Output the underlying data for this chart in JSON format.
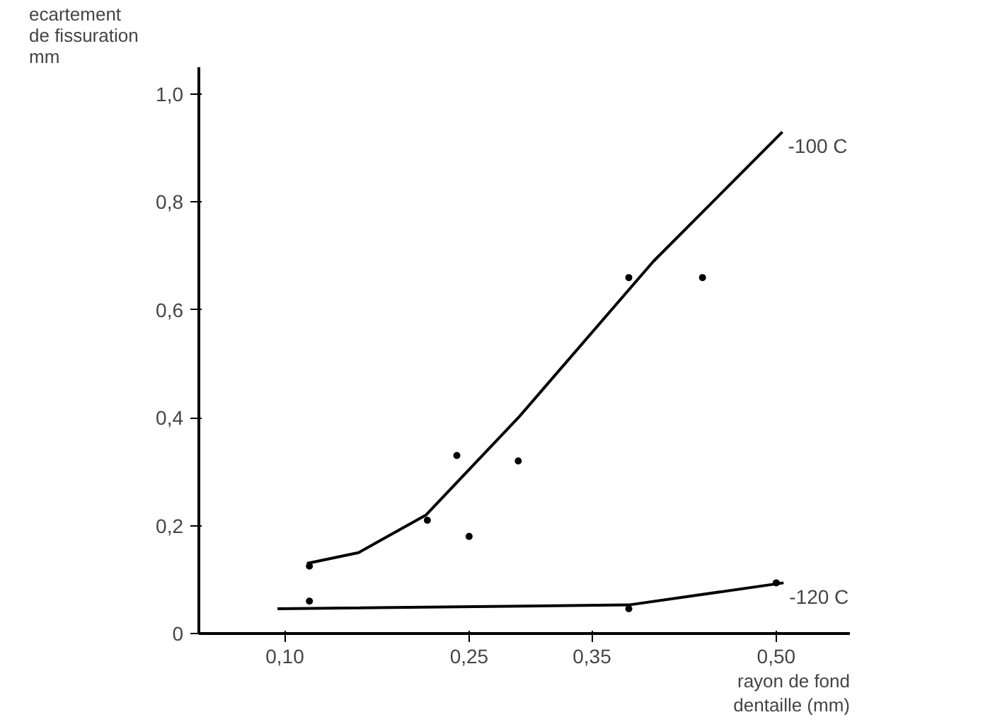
{
  "chart_data": {
    "type": "line",
    "xlabel": "rayon de fond\ndentaille (mm)",
    "ylabel": "ecartement\nde fissuration\nmm",
    "xlim": [
      0.03,
      0.56
    ],
    "ylim": [
      0,
      1.05
    ],
    "xticks": [
      {
        "value": 0.1,
        "label": "0,10"
      },
      {
        "value": 0.25,
        "label": "0,25"
      },
      {
        "value": 0.35,
        "label": "0,35"
      },
      {
        "value": 0.5,
        "label": "0,50"
      }
    ],
    "yticks": [
      0,
      {
        "value": 0.2,
        "label": "0,2"
      },
      {
        "value": 0.4,
        "label": "0,4"
      },
      {
        "value": 0.6,
        "label": "0,6"
      },
      {
        "value": 0.8,
        "label": "0,8"
      },
      {
        "value": 1.0,
        "label": "1,0"
      }
    ],
    "grid": false,
    "marker": "none",
    "line_style": "solid",
    "series": [
      {
        "name": "-100 C",
        "color": "#000000",
        "x": [
          0.118,
          0.16,
          0.215,
          0.29,
          0.4,
          0.505
        ],
        "values": [
          0.13,
          0.15,
          0.22,
          0.4,
          0.69,
          0.93
        ]
      },
      {
        "name": "-120 C",
        "color": "#000000",
        "x": [
          0.094,
          0.38,
          0.506
        ],
        "values": [
          0.046,
          0.053,
          0.094
        ]
      },
      {
        "type": "scatter",
        "marker": "circle",
        "color": "#000000",
        "x": [
          0.12,
          0.216,
          0.24,
          0.25,
          0.29,
          0.38,
          0.44,
          0.12,
          0.38,
          0.5
        ],
        "values": [
          0.125,
          0.21,
          0.33,
          0.18,
          0.32,
          0.66,
          0.66,
          0.06,
          0.046,
          0.094
        ]
      }
    ]
  }
}
